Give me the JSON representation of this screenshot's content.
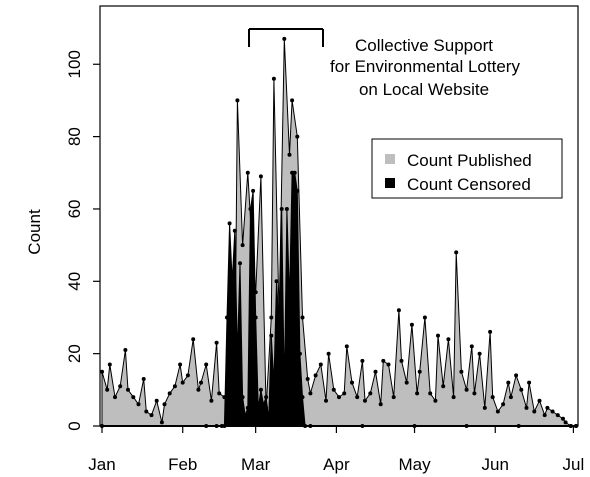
{
  "chart_data": {
    "type": "area",
    "xlabel": "",
    "ylabel": "Count",
    "ylim": [
      0,
      115
    ],
    "yticks": [
      "0",
      "20",
      "40",
      "60",
      "80",
      "100"
    ],
    "xticks": [
      "Jan",
      "Feb",
      "Mar",
      "Apr",
      "May",
      "Jun",
      "Jul"
    ],
    "annotation": [
      "Collective Support",
      "for Environmental Lottery",
      "on Local Website"
    ],
    "legend": {
      "position": "right",
      "entries": [
        {
          "label": "Count Published",
          "color": "#bebebe"
        },
        {
          "label": "Count Censored",
          "color": "#000000"
        }
      ]
    },
    "colors": {
      "published": "#bebebe",
      "censored": "#000000"
    },
    "series": [
      {
        "name": "Count Published",
        "x": [
          0,
          2,
          3,
          5,
          7,
          9,
          10,
          12,
          14,
          16,
          17,
          19,
          21,
          23,
          24,
          26,
          28,
          30,
          31,
          33,
          35,
          37,
          38,
          40,
          42,
          44,
          45,
          47,
          49,
          51,
          52,
          54,
          56,
          58,
          59,
          61,
          63,
          65,
          66,
          68,
          70,
          72,
          73,
          75,
          77,
          79,
          80,
          82,
          84,
          86,
          87,
          89,
          91,
          93,
          94,
          96,
          98,
          100,
          101,
          103,
          105,
          107,
          108,
          110,
          112,
          114,
          115,
          117,
          119,
          121,
          122,
          124,
          126,
          128,
          129,
          131,
          133,
          135,
          136,
          138,
          140,
          142,
          143,
          145,
          147,
          149,
          150,
          152,
          154,
          156,
          157,
          159,
          161,
          163,
          164,
          166,
          168,
          170,
          171,
          173,
          175,
          177,
          178,
          180,
          182
        ],
        "y": [
          15,
          10,
          17,
          8,
          11,
          21,
          10,
          8,
          6,
          13,
          4,
          3,
          7,
          1,
          6,
          9,
          11,
          17,
          12,
          14,
          24,
          10,
          12,
          17,
          7,
          23,
          9,
          8,
          5,
          13,
          90,
          50,
          70,
          45,
          37,
          69,
          5,
          30,
          96,
          30,
          107,
          75,
          90,
          80,
          30,
          13,
          9,
          14,
          17,
          7,
          20,
          10,
          8,
          9,
          22,
          12,
          8,
          18,
          7,
          9,
          15,
          6,
          18,
          17,
          8,
          32,
          18,
          12,
          28,
          9,
          15,
          30,
          9,
          7,
          25,
          11,
          24,
          8,
          48,
          15,
          10,
          22,
          9,
          20,
          5,
          26,
          8,
          4,
          6,
          12,
          8,
          14,
          10,
          5,
          12,
          4,
          7,
          3,
          5,
          4,
          3,
          2,
          1,
          0,
          0
        ],
        "color": "#bebebe"
      },
      {
        "name": "Count Censored",
        "x": [
          0,
          40,
          44,
          46,
          47,
          48,
          49,
          50,
          51,
          52,
          53,
          54,
          55,
          56,
          57,
          58,
          59,
          60,
          61,
          62,
          63,
          64,
          65,
          66,
          67,
          68,
          69,
          70,
          71,
          72,
          73,
          74,
          75,
          76,
          77,
          78,
          80,
          100,
          120,
          140,
          160,
          180,
          182
        ],
        "y": [
          0,
          0,
          0,
          0,
          0,
          30,
          56,
          40,
          54,
          20,
          45,
          8,
          3,
          5,
          60,
          65,
          30,
          5,
          10,
          6,
          8,
          2,
          25,
          12,
          40,
          28,
          60,
          10,
          60,
          35,
          70,
          70,
          65,
          20,
          8,
          0,
          0,
          0,
          0,
          0,
          0,
          0,
          0
        ],
        "color": "#000000"
      }
    ]
  }
}
